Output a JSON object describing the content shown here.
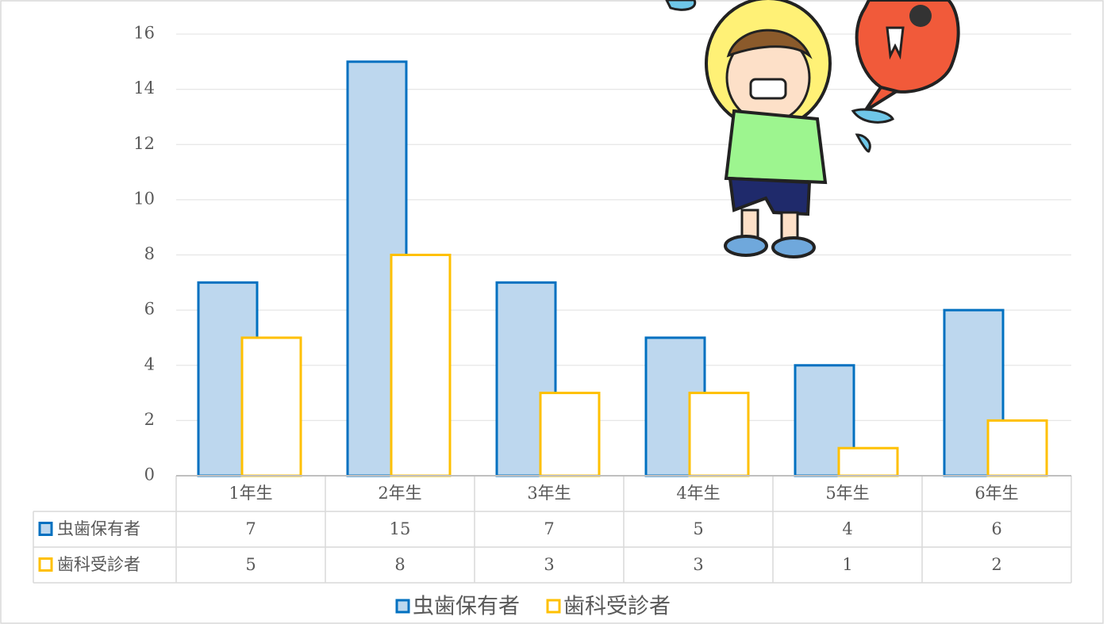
{
  "chart_data": {
    "type": "bar",
    "categories": [
      "1年生",
      "2年生",
      "3年生",
      "4年生",
      "5年生",
      "6年生"
    ],
    "series": [
      {
        "name": "虫歯保有者",
        "color": "#0070c0",
        "fill": "#bdd7ee",
        "values": [
          7,
          15,
          7,
          5,
          4,
          6
        ]
      },
      {
        "name": "歯科受診者",
        "color": "#ffc000",
        "fill": "#ffffff",
        "values": [
          5,
          8,
          3,
          3,
          1,
          2
        ]
      }
    ],
    "ylim": [
      0,
      16
    ],
    "yticks": [
      0,
      2,
      4,
      6,
      8,
      10,
      12,
      14,
      16
    ],
    "grid": true,
    "data_table": true,
    "legend": "bottom"
  }
}
